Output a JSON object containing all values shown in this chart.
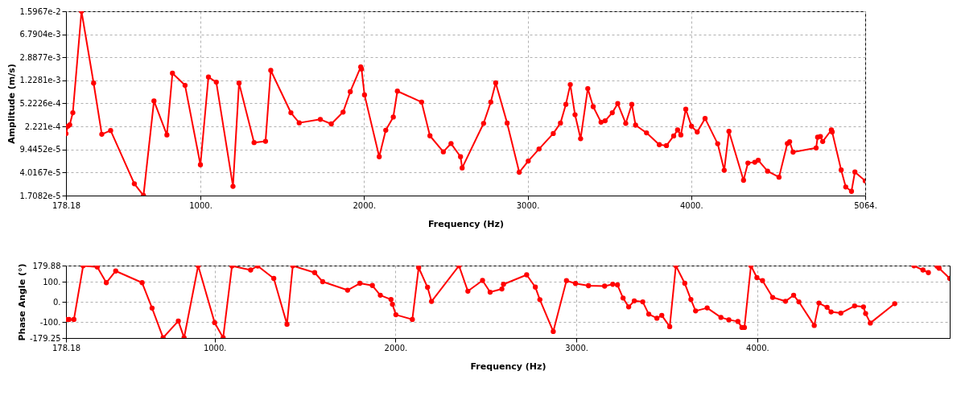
{
  "chart_data": [
    {
      "type": "line",
      "xlabel": "Frequency (Hz)",
      "ylabel": "Amplitude (m/s)",
      "log": true,
      "grid": true,
      "marker": "circle",
      "line_style": "solid",
      "xlim": [
        178.18,
        5064
      ],
      "xticks": [
        178.18,
        {
          "value": 1000,
          "label": "1000."
        },
        {
          "value": 2000,
          "label": "2000."
        },
        {
          "value": 3000,
          "label": "3000."
        },
        {
          "value": 4000,
          "label": "4000."
        },
        {
          "value": 5064,
          "label": "5064."
        }
      ],
      "ylim": [
        1.7082e-05,
        0.015967
      ],
      "yticks": [
        {
          "value": 1.7082e-05,
          "label": "1.7082e-5"
        },
        {
          "value": 4.0167e-05,
          "label": "4.0167e-5"
        },
        {
          "value": 9.4452e-05,
          "label": "9.4452e-5"
        },
        {
          "value": 0.0002221,
          "label": "2.221e-4"
        },
        {
          "value": 0.00052226,
          "label": "5.2226e-4"
        },
        {
          "value": 0.0012281,
          "label": "1.2281e-3"
        },
        {
          "value": 0.0028877,
          "label": "2.8877e-3"
        },
        {
          "value": 0.0067904,
          "label": "6.7904e-3"
        },
        {
          "value": 0.015967,
          "label": "1.5967e-2"
        }
      ],
      "x": [
        178.18,
        190,
        201,
        220,
        273,
        347,
        397,
        451,
        596,
        652,
        716,
        795,
        829,
        906,
        1000,
        1049,
        1097,
        1199,
        1236,
        1328,
        1398,
        1430,
        1553,
        1604,
        1733,
        1800,
        1872,
        1916,
        1980,
        1985,
        2003,
        2093,
        2133,
        2179,
        2204,
        2352,
        2403,
        2485,
        2532,
        2590,
        2600,
        2731,
        2775,
        2805,
        2875,
        2949,
        3004,
        3070,
        3157,
        3201,
        3234,
        3261,
        3290,
        3324,
        3368,
        3401,
        3449,
        3474,
        3518,
        3551,
        3600,
        3637,
        3660,
        3727,
        3805,
        3849,
        3893,
        3917,
        3937,
        3967,
        4002,
        4037,
        4085,
        4162,
        4202,
        4231,
        4320,
        4347,
        4389,
        4410,
        4467,
        4537,
        4588,
        4602,
        4623,
        4764,
        4773,
        4790,
        4804,
        4857,
        4862,
        4917,
        4945,
        4980,
        5001,
        5064
      ],
      "series": [
        {
          "color": "#ff0000",
          "values": [
            0.00017,
            0.000224,
            0.000236,
            0.00037,
            0.015967,
            0.00111,
            0.000166,
            0.000191,
            2.65e-05,
            1.71e-05,
            0.000573,
            0.000162,
            0.0016,
            0.00102,
            5.35e-05,
            0.00139,
            0.00115,
            2.4e-05,
            0.00111,
            0.000122,
            0.000128,
            0.00178,
            0.00037,
            0.000254,
            0.000289,
            0.000244,
            0.000378,
            0.000806,
            0.00202,
            0.00187,
            0.000717,
            7.22e-05,
            0.000193,
            0.000315,
            0.000824,
            0.000549,
            0.000157,
            8.66e-05,
            0.000118,
            7.22e-05,
            4.76e-05,
            0.000249,
            0.000549,
            0.00112,
            0.000252,
            4.06e-05,
            6.15e-05,
            9.63e-05,
            0.000171,
            0.000252,
            0.000504,
            0.00105,
            0.000343,
            0.000141,
            0.000906,
            0.000463,
            0.00026,
            0.000274,
            0.00037,
            0.00052,
            0.000249,
            0.000504,
            0.000233,
            0.000175,
            0.000113,
            0.000109,
            0.000156,
            0.000195,
            0.000162,
            0.000421,
            0.000224,
            0.000181,
            0.000299,
            0.000117,
            4.37e-05,
            0.000185,
            3.01e-05,
            5.71e-05,
            5.89e-05,
            6.35e-05,
            4.23e-05,
            3.38e-05,
            0.000118,
            0.000126,
            8.57e-05,
            0.0001,
            0.000149,
            0.000153,
            0.000127,
            0.000195,
            0.000181,
            4.42e-05,
            2.35e-05,
            2e-05,
            4.1e-05,
            2.94e-05
          ]
        }
      ]
    },
    {
      "type": "line",
      "xlabel": "Frequency (Hz)",
      "ylabel": "Phase Angle (°)",
      "grid": true,
      "marker": "circle",
      "line_style": "solid",
      "xlim": [
        178.18,
        5064
      ],
      "xticks": [
        178.18,
        {
          "value": 1000,
          "label": "1000."
        },
        {
          "value": 2000,
          "label": "2000."
        },
        {
          "value": 3000,
          "label": "3000."
        },
        {
          "value": 4000,
          "label": "4000."
        }
      ],
      "ylim": [
        -179.25,
        179.88
      ],
      "yticks": [
        -179.25,
        {
          "value": -100,
          "label": "-100."
        },
        {
          "value": 0,
          "label": "0."
        },
        {
          "value": 100,
          "label": "100."
        },
        179.88
      ],
      "x": [
        178.18,
        195,
        222,
        273,
        351,
        401,
        453,
        599,
        654,
        715,
        799,
        831,
        909,
        1000,
        1047,
        1096,
        1199,
        1238,
        1327,
        1400,
        1432,
        1553,
        1597,
        1735,
        1803,
        1872,
        1916,
        1975,
        1983,
        2002,
        2093,
        2128,
        2177,
        2199,
        2351,
        2400,
        2481,
        2523,
        2588,
        2597,
        2725,
        2773,
        2798,
        2872,
        2945,
        2995,
        3067,
        3156,
        3201,
        3227,
        3258,
        3289,
        3320,
        3367,
        3400,
        3445,
        3472,
        3516,
        3550,
        3599,
        3633,
        3659,
        3723,
        3799,
        3843,
        3893,
        3915,
        3929,
        3965,
        3998,
        4029,
        4085,
        4156,
        4201,
        4230,
        4315,
        4341,
        4386,
        4408,
        4462,
        4538,
        4587,
        4599,
        4625,
        4760,
        4830,
        4866,
        4916,
        4946,
        4975,
        4994,
        5005,
        5064
      ],
      "series": [
        {
          "color": "#ff0000",
          "values": [
            -87,
            -87,
            -87,
            179,
            173,
            95,
            153,
            95,
            -31,
            -178,
            -95,
            -178,
            179,
            -103,
            -178,
            178,
            158,
            178,
            116,
            -111,
            179,
            145,
            100,
            58,
            92,
            81,
            33,
            12,
            -12,
            -64,
            -87,
            170,
            72,
            2,
            179,
            53,
            106,
            48,
            64,
            87,
            134,
            73,
            11,
            -147,
            105,
            91,
            80,
            78,
            87,
            84,
            19,
            -25,
            5,
            0,
            -61,
            -81,
            -67,
            -123,
            179,
            92,
            12,
            -45,
            -30,
            -77,
            -89,
            -97,
            -127,
            -127,
            179,
            120,
            105,
            22,
            3,
            33,
            0,
            -117,
            -6,
            -27,
            -50,
            -56,
            -20,
            -25,
            -58,
            -105,
            -9,
            null,
            179,
            158,
            145,
            null,
            177,
            167,
            116
          ]
        }
      ]
    }
  ]
}
